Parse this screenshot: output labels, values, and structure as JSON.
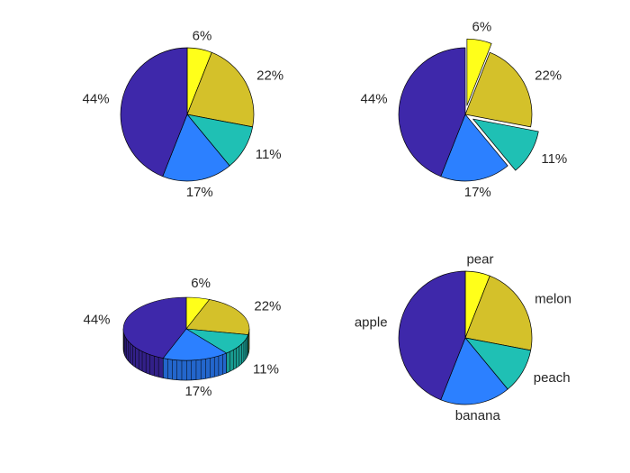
{
  "chart_data": [
    {
      "type": "pie",
      "slices": [
        {
          "category": "pear",
          "value": 6,
          "label": "6%",
          "color": "#FFFF1A"
        },
        {
          "category": "melon",
          "value": 22,
          "label": "22%",
          "color": "#D4C12A"
        },
        {
          "category": "peach",
          "value": 11,
          "label": "11%",
          "color": "#1FC0B4"
        },
        {
          "category": "banana",
          "value": 17,
          "label": "17%",
          "color": "#2C80FF"
        },
        {
          "category": "apple",
          "value": 44,
          "label": "44%",
          "color": "#3E28AA"
        }
      ]
    },
    {
      "type": "pie",
      "exploded": [
        "pear",
        "peach"
      ],
      "slices": [
        {
          "category": "pear",
          "value": 6,
          "label": "6%",
          "color": "#FFFF1A"
        },
        {
          "category": "melon",
          "value": 22,
          "label": "22%",
          "color": "#D4C12A"
        },
        {
          "category": "peach",
          "value": 11,
          "label": "11%",
          "color": "#1FC0B4"
        },
        {
          "category": "banana",
          "value": 17,
          "label": "17%",
          "color": "#2C80FF"
        },
        {
          "category": "apple",
          "value": 44,
          "label": "44%",
          "color": "#3E28AA"
        }
      ]
    },
    {
      "type": "pie3d",
      "slices": [
        {
          "category": "pear",
          "value": 6,
          "label": "6%",
          "color": "#FFFF1A"
        },
        {
          "category": "melon",
          "value": 22,
          "label": "22%",
          "color": "#D4C12A"
        },
        {
          "category": "peach",
          "value": 11,
          "label": "11%",
          "color": "#1FC0B4"
        },
        {
          "category": "banana",
          "value": 17,
          "label": "17%",
          "color": "#2C80FF"
        },
        {
          "category": "apple",
          "value": 44,
          "label": "44%",
          "color": "#3E28AA"
        }
      ]
    },
    {
      "type": "pie",
      "slices": [
        {
          "category": "pear",
          "value": 6,
          "label": "pear",
          "color": "#FFFF1A"
        },
        {
          "category": "melon",
          "value": 22,
          "label": "melon",
          "color": "#D4C12A"
        },
        {
          "category": "peach",
          "value": 11,
          "label": "peach",
          "color": "#1FC0B4"
        },
        {
          "category": "banana",
          "value": 17,
          "label": "banana",
          "color": "#2C80FF"
        },
        {
          "category": "apple",
          "value": 44,
          "label": "apple",
          "color": "#3E28AA"
        }
      ]
    }
  ]
}
